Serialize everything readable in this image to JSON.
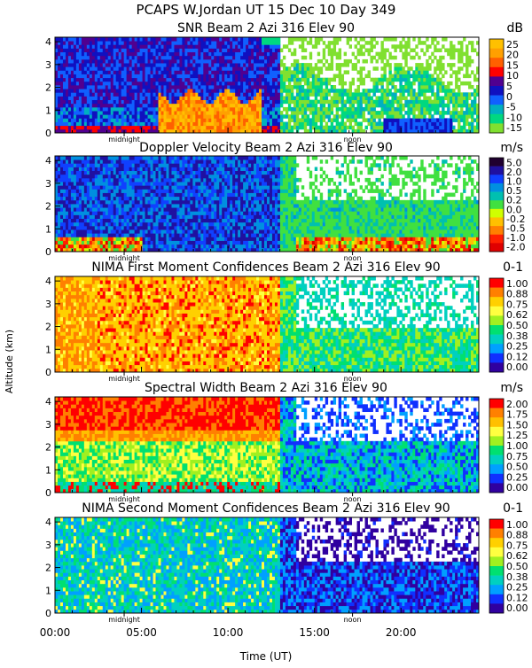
{
  "figure": {
    "header": "PCAPS W.Jordan UT  15 Dec 10 Day 349",
    "ylabel": "Altitude (km)",
    "xlabel": "Time (UT)",
    "x_ticks": [
      "00:00",
      "05:00",
      "10:00",
      "15:00",
      "20:00"
    ],
    "x_tick_hours": [
      0,
      5,
      10,
      15,
      20
    ],
    "x_range_hours": [
      0,
      24.5
    ],
    "y_range_km": [
      0,
      4.2
    ],
    "y_ticks": [
      "0",
      "1",
      "2",
      "3",
      "4"
    ],
    "midnight_label": "midnight",
    "noon_label": "noon",
    "midnight_hour": 4.0,
    "noon_hour": 17.2
  },
  "chart_data": [
    {
      "type": "heatmap",
      "title": "SNR Beam 2 Azi 316 Elev 90",
      "unit": "dB",
      "scale_labels": [
        "25",
        "20",
        "15",
        "10",
        "5",
        "0",
        "-5",
        "-10",
        "-15"
      ],
      "scale_colors": [
        "#ffc000",
        "#ffa000",
        "#ff6000",
        "#ff0000",
        "#500090",
        "#1010c0",
        "#1060ff",
        "#00b0c0",
        "#00d880",
        "#80e030"
      ]
    },
    {
      "type": "heatmap",
      "title": "Doppler Velocity Beam 2 Azi 316 Elev 90",
      "unit": "m/s",
      "scale_labels": [
        "5.0",
        "2.0",
        "1.0",
        "0.5",
        "0.2",
        "0.0",
        "-0.2",
        "-0.5",
        "-1.0",
        "-2.0"
      ],
      "scale_colors": [
        "#200030",
        "#2010a0",
        "#1040ff",
        "#0090e0",
        "#00c0b0",
        "#40e040",
        "#d0ff00",
        "#ffc000",
        "#ff8000",
        "#ff2000",
        "#e00000"
      ]
    },
    {
      "type": "heatmap",
      "title": "NIMA First Moment Confidences Beam 2 Azi 316 Elev 90",
      "unit": "0-1",
      "scale_labels": [
        "1.00",
        "0.88",
        "0.75",
        "0.62",
        "0.50",
        "0.38",
        "0.25",
        "0.12",
        "0.00"
      ],
      "scale_colors": [
        "#ff0000",
        "#ff8000",
        "#ffd000",
        "#ffff40",
        "#a0f020",
        "#00e070",
        "#00d0c0",
        "#00a0ff",
        "#1030ff",
        "#3000a0"
      ]
    },
    {
      "type": "heatmap",
      "title": "Spectral Width Beam 2 Azi 316 Elev 90",
      "unit": "m/s",
      "scale_labels": [
        "2.00",
        "1.75",
        "1.50",
        "1.25",
        "1.00",
        "0.75",
        "0.50",
        "0.25",
        "0.00"
      ],
      "scale_colors": [
        "#ff0000",
        "#ff8000",
        "#ffc000",
        "#ffff40",
        "#a0f020",
        "#00e070",
        "#00d0c0",
        "#00a0ff",
        "#1030ff",
        "#3000a0"
      ]
    },
    {
      "type": "heatmap",
      "title": "NIMA Second Moment Confidences Beam 2 Azi 316 Elev 90",
      "unit": "0-1",
      "scale_labels": [
        "1.00",
        "0.88",
        "0.75",
        "0.62",
        "0.50",
        "0.38",
        "0.25",
        "0.12",
        "0.00"
      ],
      "scale_colors": [
        "#ff0000",
        "#ff8000",
        "#ffd000",
        "#ffff40",
        "#a0f020",
        "#00e070",
        "#00d0c0",
        "#00a0ff",
        "#1030ff",
        "#3000a0"
      ]
    }
  ]
}
